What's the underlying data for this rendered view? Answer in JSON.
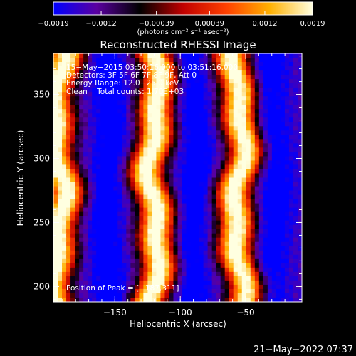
{
  "chart_data": {
    "type": "heatmap",
    "title": "Reconstructed RHESSI Image",
    "xlabel": "Heliocentric X (arcsec)",
    "ylabel": "Heliocentric Y (arcsec)",
    "xlim": [
      -197,
      -7
    ],
    "ylim": [
      188,
      382
    ],
    "x_ticks": [
      {
        "value": -150,
        "label": "−150"
      },
      {
        "value": -100,
        "label": "−100"
      },
      {
        "value": -50,
        "label": "−50"
      }
    ],
    "y_ticks": [
      {
        "value": 200,
        "label": "200"
      },
      {
        "value": 250,
        "label": "250"
      },
      {
        "value": 300,
        "label": "300"
      },
      {
        "value": 350,
        "label": "350"
      }
    ],
    "colorbar": {
      "range": [
        -0.0019,
        0.0019
      ],
      "tick_values": [
        -0.0019,
        -0.0012,
        -0.00039,
        0.00039,
        0.0012,
        0.0019
      ],
      "tick_labels": [
        "−0.0019",
        "−0.0012",
        "−0.00039",
        "0.00039",
        "0.0012",
        "0.0019"
      ],
      "unit_label": "(photons cm⁻² s⁻¹ asec⁻²)"
    },
    "colormap": [
      "#0000ff",
      "#5a00a0",
      "#000000",
      "#c00000",
      "#ff4000",
      "#ffb000",
      "#ffffe0"
    ],
    "stripe_centers_x": [
      -193,
      -120,
      -55
    ],
    "trough_centers_x": [
      -155,
      -90,
      -30
    ],
    "peak": {
      "x": -187,
      "y": 311
    },
    "annotations": [
      "15−May−2015 03:50:16.000 to 03:51:16.000",
      "Detectors: 3F 5F 6F 7F 8F 9F, Att 0",
      "Energy Range: 12.0−25.0 keV",
      "Clean    Total counts: 1.70E+03",
      "Position of Peak = [−187,311]"
    ]
  },
  "footer": {
    "timestamp": "21−May−2022 07:37"
  }
}
